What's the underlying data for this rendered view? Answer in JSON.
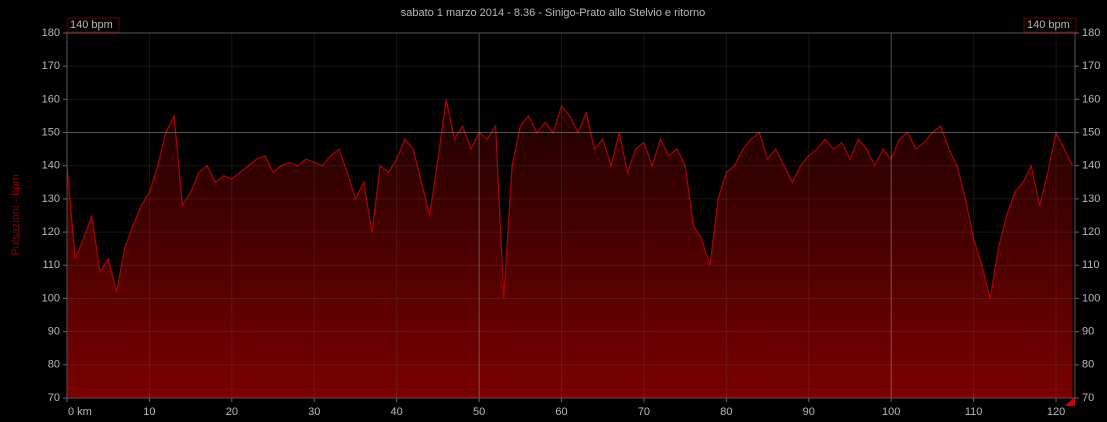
{
  "chart_data": {
    "type": "area",
    "title": "sabato 1 marzo 2014 - 8.36 - Sinigo-Prato allo Stelvio e ritorno",
    "y_label": "Pulsazioni - bpm",
    "annotations": [
      "140 bpm",
      "140 bpm"
    ],
    "x": [
      0,
      1,
      2,
      3,
      4,
      5,
      6,
      7,
      8,
      9,
      10,
      11,
      12,
      13,
      14,
      15,
      16,
      17,
      18,
      19,
      20,
      21,
      22,
      23,
      24,
      25,
      26,
      27,
      28,
      29,
      30,
      31,
      32,
      33,
      34,
      35,
      36,
      37,
      38,
      39,
      40,
      41,
      42,
      43,
      44,
      45,
      46,
      47,
      48,
      49,
      50,
      51,
      52,
      53,
      54,
      55,
      56,
      57,
      58,
      59,
      60,
      61,
      62,
      63,
      64,
      65,
      66,
      67,
      68,
      69,
      70,
      71,
      72,
      73,
      74,
      75,
      76,
      77,
      78,
      79,
      80,
      81,
      82,
      83,
      84,
      85,
      86,
      87,
      88,
      89,
      90,
      91,
      92,
      93,
      94,
      95,
      96,
      97,
      98,
      99,
      100,
      101,
      102,
      103,
      104,
      105,
      106,
      107,
      108,
      109,
      110,
      111,
      112,
      113,
      114,
      115,
      116,
      117,
      118,
      119,
      120,
      121,
      122
    ],
    "series": [
      {
        "name": "Pulsazioni",
        "color": "#b00000",
        "values": [
          140,
          112,
          118,
          125,
          108,
          112,
          102,
          115,
          122,
          128,
          132,
          140,
          150,
          155,
          128,
          132,
          138,
          140,
          135,
          137,
          136,
          138,
          140,
          142,
          143,
          138,
          140,
          141,
          140,
          142,
          141,
          140,
          143,
          145,
          138,
          130,
          135,
          120,
          140,
          138,
          142,
          148,
          145,
          135,
          125,
          142,
          160,
          148,
          152,
          145,
          150,
          148,
          152,
          100,
          140,
          152,
          155,
          150,
          153,
          150,
          158,
          155,
          150,
          156,
          145,
          148,
          140,
          150,
          138,
          145,
          147,
          140,
          148,
          143,
          145,
          140,
          122,
          118,
          110,
          130,
          138,
          140,
          145,
          148,
          150,
          142,
          145,
          140,
          135,
          140,
          143,
          145,
          148,
          145,
          147,
          142,
          148,
          145,
          140,
          145,
          142,
          148,
          150,
          145,
          147,
          150,
          152,
          145,
          140,
          130,
          118,
          110,
          100,
          115,
          125,
          132,
          135,
          140,
          128,
          138,
          150,
          145,
          140
        ]
      }
    ],
    "xlim": [
      0,
      122.3
    ],
    "ylim": [
      70,
      180
    ],
    "y2lim": [
      70,
      180
    ],
    "xticks": [
      {
        "value": 0,
        "label": "0 km"
      },
      10,
      20,
      30,
      40,
      50,
      60,
      70,
      80,
      90,
      100,
      110,
      120
    ],
    "yticks": [
      70,
      80,
      90,
      100,
      110,
      120,
      130,
      140,
      150,
      160,
      170,
      180
    ],
    "y2ticks": [
      70,
      80,
      90,
      100,
      110,
      120,
      130,
      140,
      150,
      160,
      170,
      180
    ],
    "major_xgrid": [
      50,
      100
    ],
    "major_ygrid": [
      150
    ],
    "grid": true
  }
}
